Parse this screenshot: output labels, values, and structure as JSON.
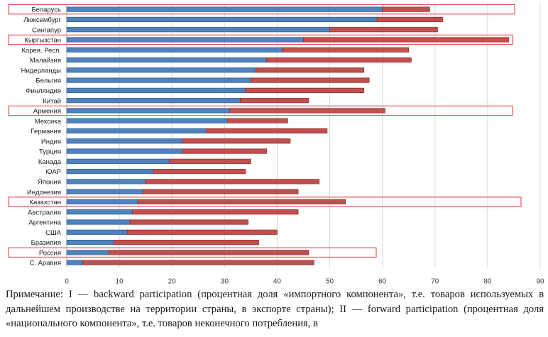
{
  "chart_data": {
    "type": "bar",
    "orientation": "horizontal",
    "stacked": true,
    "title": "",
    "xlabel": "",
    "ylabel": "",
    "xlim": [
      0,
      90
    ],
    "xticks": [
      0,
      10,
      20,
      30,
      40,
      50,
      60,
      70,
      80,
      90
    ],
    "grid": true,
    "legend_position": "bottom-center",
    "categories": [
      "Беларусь",
      "Люксембург",
      "Сингапур",
      "Кыргызстан",
      "Корея. Респ.",
      "Малайзия",
      "Нидерланды",
      "Бельгия",
      "Финляндия",
      "Китай",
      "Армения",
      "Мексика",
      "Германия",
      "Индия",
      "Турция",
      "Канада",
      "ЮАР",
      "Япония",
      "Индонезия",
      "Казахстан",
      "Австралия",
      "Аргентина",
      "США",
      "Бразилия",
      "Россия",
      "С. Аравия"
    ],
    "highlighted": [
      "Беларусь",
      "Кыргызстан",
      "Армения",
      "Казахстан",
      "Россия"
    ],
    "series": [
      {
        "name": "I",
        "color": "#4f81bd",
        "values": [
          60.0,
          59.0,
          50.0,
          45.0,
          41.0,
          38.0,
          36.0,
          35.0,
          34.0,
          33.0,
          31.0,
          30.5,
          26.5,
          22.0,
          22.0,
          19.5,
          16.5,
          15.0,
          14.5,
          13.5,
          12.5,
          12.0,
          11.5,
          9.0,
          8.0,
          3.0
        ]
      },
      {
        "name": "II",
        "color": "#c0504d",
        "values": [
          9.0,
          12.5,
          20.5,
          39.0,
          24.0,
          27.5,
          20.5,
          22.5,
          22.5,
          13.0,
          29.5,
          11.5,
          23.0,
          20.5,
          16.0,
          15.5,
          17.5,
          33.0,
          29.5,
          39.5,
          31.5,
          22.5,
          28.5,
          27.5,
          38.0,
          44.0
        ]
      }
    ]
  },
  "note": {
    "text": "Примечание: I — backward participation (процентная доля «импортного компонента», т.е. товаров используемых в дальнейшем производстве на территории страны, в экспорте страны); II — forward participation (процентная доля «национального компонента», т.е. товаров неконечного потребления, в"
  }
}
